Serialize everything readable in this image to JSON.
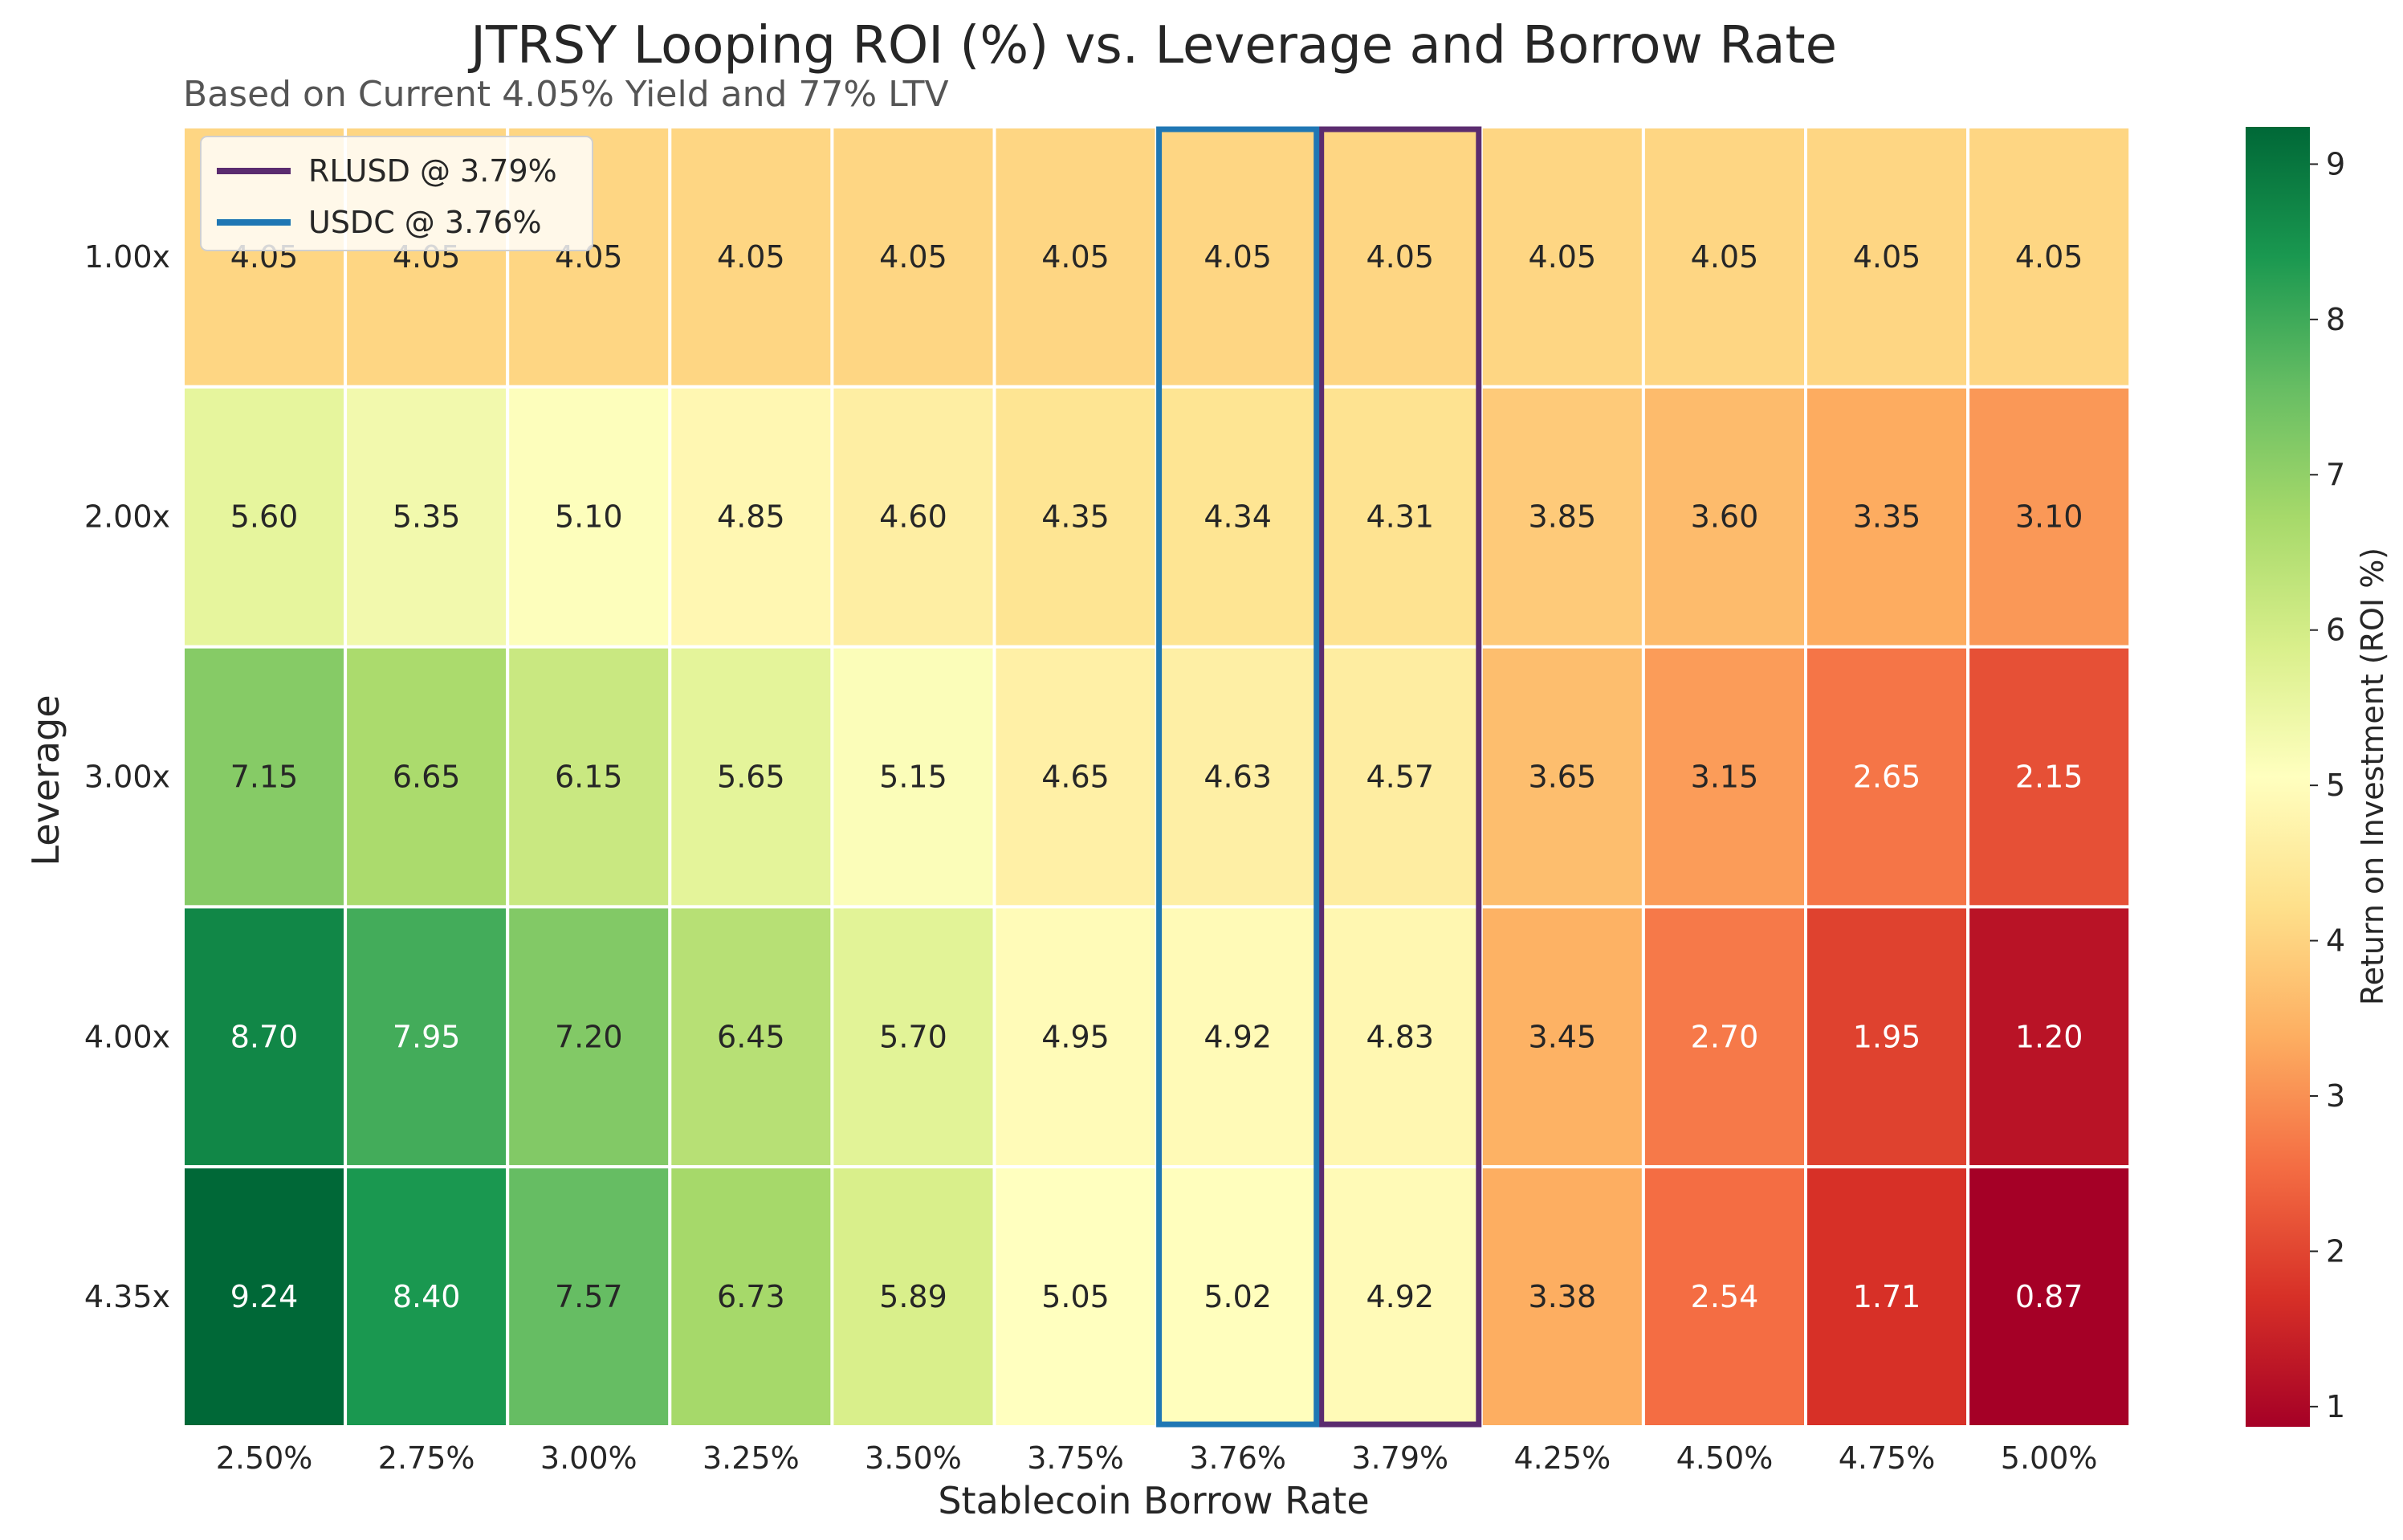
{
  "chart_data": {
    "type": "heatmap",
    "title": "JTRSY Looping ROI (%) vs. Leverage and Borrow Rate",
    "subtitle": "Based on Current 4.05% Yield and 77% LTV",
    "xlabel": "Stablecoin Borrow Rate",
    "ylabel": "Leverage",
    "x_categories": [
      "2.50%",
      "2.75%",
      "3.00%",
      "3.25%",
      "3.50%",
      "3.75%",
      "3.76%",
      "3.79%",
      "4.25%",
      "4.50%",
      "4.75%",
      "5.00%"
    ],
    "y_categories": [
      "1.00x",
      "2.00x",
      "3.00x",
      "4.00x",
      "4.35x"
    ],
    "values": [
      [
        4.05,
        4.05,
        4.05,
        4.05,
        4.05,
        4.05,
        4.05,
        4.05,
        4.05,
        4.05,
        4.05,
        4.05
      ],
      [
        5.6,
        5.35,
        5.1,
        4.85,
        4.6,
        4.35,
        4.34,
        4.31,
        3.85,
        3.6,
        3.35,
        3.1
      ],
      [
        7.15,
        6.65,
        6.15,
        5.65,
        5.15,
        4.65,
        4.63,
        4.57,
        3.65,
        3.15,
        2.65,
        2.15
      ],
      [
        8.7,
        7.95,
        7.2,
        6.45,
        5.7,
        4.95,
        4.92,
        4.83,
        3.45,
        2.7,
        1.95,
        1.2
      ],
      [
        9.24,
        8.4,
        7.57,
        6.73,
        5.89,
        5.05,
        5.02,
        4.92,
        3.38,
        2.54,
        1.71,
        0.87
      ]
    ],
    "value_format": "2 decimals",
    "colormap": "RdYlGn",
    "color_range": [
      0.87,
      9.24
    ],
    "colorbar": {
      "label": "Return on Investment (ROI %)",
      "ticks": [
        1,
        2,
        3,
        4,
        5,
        6,
        7,
        8,
        9
      ]
    },
    "highlights": [
      {
        "column": "3.79%",
        "label": "RLUSD @ 3.79%",
        "color": "#5b2c6f"
      },
      {
        "column": "3.76%",
        "label": "USDC @ 3.76%",
        "color": "#1f77b4"
      }
    ],
    "legend": {
      "placement": "top-left",
      "entries": [
        "RLUSD @ 3.79%",
        "USDC @ 3.76%"
      ]
    }
  }
}
